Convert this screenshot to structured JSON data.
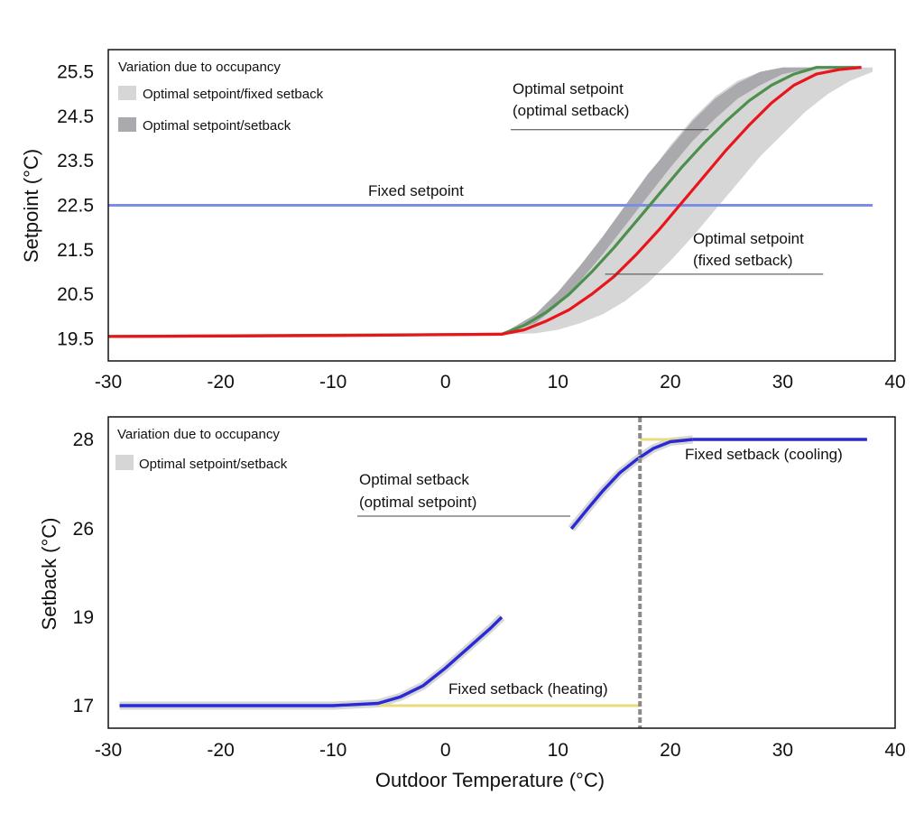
{
  "chart_data": [
    {
      "type": "line",
      "xlabel": "",
      "ylabel": "Setpoint (°C)",
      "xlim": [
        -30,
        40
      ],
      "ylim": [
        19,
        26
      ],
      "xticks": [
        -30,
        -20,
        -10,
        0,
        10,
        20,
        30,
        40
      ],
      "yticks": [
        19.5,
        20.5,
        21.5,
        22.5,
        23.5,
        24.5,
        25.5
      ],
      "legend": {
        "title": "Variation due to occupancy",
        "placement": "top-left",
        "entries": [
          {
            "label": "Optimal setpoint/fixed setback",
            "color": "#d6d6d6"
          },
          {
            "label": "Optimal setpoint/setback",
            "color": "#a9a9ae"
          }
        ]
      },
      "bands": [
        {
          "name": "Optimal setpoint/fixed setback",
          "color": "#d6d6d6",
          "x": [
            5,
            8,
            10,
            12,
            14,
            16,
            18,
            20,
            22,
            24,
            26,
            28,
            30,
            32,
            34,
            36,
            38
          ],
          "lower": [
            19.6,
            19.62,
            19.7,
            19.85,
            20.05,
            20.35,
            20.75,
            21.25,
            21.8,
            22.4,
            23.0,
            23.6,
            24.1,
            24.6,
            25.0,
            25.3,
            25.5
          ],
          "upper": [
            19.6,
            19.95,
            20.45,
            21.05,
            21.7,
            22.4,
            23.15,
            23.85,
            24.45,
            24.95,
            25.3,
            25.5,
            25.6,
            25.6,
            25.6,
            25.6,
            25.6
          ]
        },
        {
          "name": "Optimal setpoint/setback",
          "color": "#a9a9ae",
          "x": [
            5,
            8,
            10,
            12,
            14,
            16,
            18,
            20,
            22,
            24,
            26,
            28,
            30,
            32,
            34
          ],
          "lower": [
            19.6,
            19.85,
            20.25,
            20.8,
            21.4,
            22.05,
            22.7,
            23.35,
            23.95,
            24.45,
            24.9,
            25.2,
            25.45,
            25.55,
            25.6
          ],
          "upper": [
            19.6,
            20.05,
            20.55,
            21.15,
            21.8,
            22.5,
            23.2,
            23.8,
            24.4,
            24.9,
            25.25,
            25.5,
            25.6,
            25.6,
            25.6
          ]
        }
      ],
      "series": [
        {
          "name": "Fixed setpoint",
          "color": "#7b8ee6",
          "x": [
            -30,
            38
          ],
          "y": [
            22.5,
            22.5
          ]
        },
        {
          "name": "Optimal setpoint (optimal setback)",
          "color": "#4d8f4d",
          "x": [
            -30,
            5,
            7,
            9,
            11,
            13,
            15,
            17,
            19,
            21,
            23,
            25,
            27,
            29,
            31,
            33,
            35,
            37
          ],
          "y": [
            19.55,
            19.6,
            19.8,
            20.1,
            20.5,
            21.0,
            21.55,
            22.15,
            22.75,
            23.35,
            23.9,
            24.4,
            24.85,
            25.2,
            25.45,
            25.6,
            25.6,
            25.6
          ]
        },
        {
          "name": "Optimal setpoint (fixed setback)",
          "color": "#e8151b",
          "x": [
            -30,
            -10,
            5,
            7,
            9,
            11,
            13,
            15,
            17,
            19,
            21,
            23,
            25,
            27,
            29,
            31,
            33,
            35,
            37
          ],
          "y": [
            19.55,
            19.57,
            19.6,
            19.7,
            19.9,
            20.15,
            20.5,
            20.9,
            21.4,
            21.95,
            22.55,
            23.15,
            23.75,
            24.3,
            24.8,
            25.2,
            25.45,
            25.55,
            25.6
          ]
        }
      ],
      "annotations": [
        {
          "text": "Fixed setpoint",
          "x": 8,
          "y": 22.85
        },
        {
          "text": "Optimal setpoint",
          "x": 88,
          "y": 25.1
        },
        {
          "text": "(optimal setback)",
          "x": 88,
          "y": 24.7
        },
        {
          "text": "Optimal setpoint",
          "x": 112,
          "y": 21.7
        },
        {
          "text": "(fixed setback)",
          "x": 112,
          "y": 21.3
        }
      ],
      "leaders": [
        {
          "x1": 5.8,
          "y1": 24.2,
          "x2": 23.4,
          "y2": 24.2
        },
        {
          "x1": 14.2,
          "y1": 20.95,
          "x2": 33.6,
          "y2": 20.95
        }
      ]
    },
    {
      "type": "line",
      "xlabel": "Outdoor Temperature (°C)",
      "ylabel": "Setback (°C)",
      "xlim": [
        -30,
        40
      ],
      "yticks": [
        "17",
        "19",
        "26",
        "28"
      ],
      "xticks": [
        -30,
        -20,
        -10,
        0,
        10,
        20,
        30,
        40
      ],
      "legend": {
        "title": "Variation due to occupancy",
        "placement": "top-left",
        "entries": [
          {
            "label": "Optimal setpoint/setback",
            "color": "#d6d6d6"
          }
        ]
      },
      "segments": [
        {
          "name": "Fixed setback (heating)",
          "color": "#e8dc7c",
          "x": [
            -6,
            17.3
          ],
          "y": [
            17,
            17
          ]
        },
        {
          "name": "Fixed setback (cooling)",
          "color": "#e8dc7c",
          "x": [
            17.3,
            22
          ],
          "y": [
            28,
            28
          ]
        },
        {
          "name": "Optimal setback (heating)",
          "color": "#2929d6",
          "x": [
            -29,
            -20,
            -10,
            -6,
            -4,
            -2,
            0,
            2,
            4,
            5
          ],
          "y": [
            17,
            17,
            17,
            17.05,
            17.2,
            17.45,
            17.85,
            18.3,
            18.75,
            19.0
          ]
        },
        {
          "name": "Optimal setback (optimal setpoint)",
          "color": "#2929d6",
          "x": [
            11.2,
            12.5,
            14,
            15.5,
            17,
            18.5,
            20,
            22
          ],
          "y": [
            26,
            26.4,
            26.85,
            27.25,
            27.55,
            27.8,
            27.95,
            28
          ]
        },
        {
          "name": "Optimal setback (cooling)",
          "color": "#2929d6",
          "x": [
            22,
            37.5
          ],
          "y": [
            28,
            28
          ]
        }
      ],
      "dashed_line": {
        "x": 17.3,
        "color": "#8a8a8a"
      },
      "annotations": [
        {
          "text": "Optimal setback",
          "x": 2,
          "y": 26.9
        },
        {
          "text": "(optimal setpoint)",
          "x": 2,
          "y": 26.5
        },
        {
          "text": "Fixed setback (cooling)",
          "x": 3,
          "y": 27.7
        },
        {
          "text": "Fixed setback (heating)",
          "x": 1,
          "y": 17.3
        }
      ]
    }
  ]
}
